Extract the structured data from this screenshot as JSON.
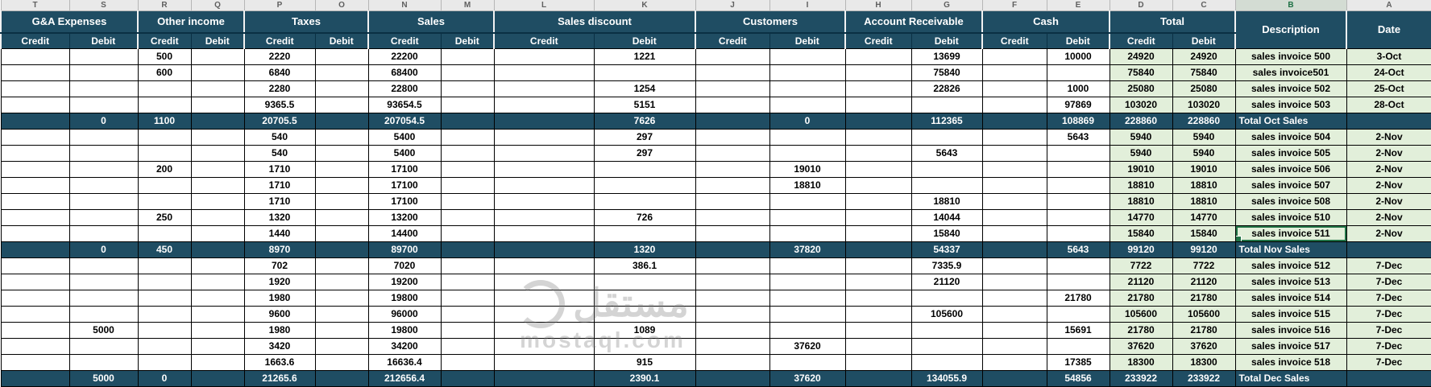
{
  "app": "spreadsheet-sales-journal",
  "colors": {
    "header_bg": "#1F4D63",
    "total_row_bg": "#1F4D63",
    "accent_green": "#E2EFDA",
    "selection_green": "#217346",
    "grid_border": "#000000"
  },
  "watermark": {
    "arabic": "مستقل",
    "domain": "mostaql.com"
  },
  "sheet": {
    "column_letters": [
      "T",
      "S",
      "R",
      "Q",
      "P",
      "O",
      "N",
      "M",
      "L",
      "K",
      "J",
      "I",
      "H",
      "G",
      "F",
      "E",
      "D",
      "C",
      "B",
      "A"
    ],
    "selected_column_letter": "B",
    "credit_label": "Credit",
    "debit_label": "Debit",
    "groups": [
      {
        "label": "G&A Expenses",
        "type": "pair"
      },
      {
        "label": "Other income",
        "type": "pair"
      },
      {
        "label": "Taxes",
        "type": "pair"
      },
      {
        "label": "Sales",
        "type": "pair"
      },
      {
        "label": "Sales discount",
        "type": "pair"
      },
      {
        "label": "Customers",
        "type": "pair"
      },
      {
        "label": "Account Receivable",
        "type": "pair"
      },
      {
        "label": "Cash",
        "type": "pair"
      },
      {
        "label": "Total",
        "type": "pair"
      },
      {
        "label": "Description",
        "type": "single"
      },
      {
        "label": "Date",
        "type": "single"
      }
    ],
    "rows": [
      {
        "type": "data",
        "cells": {
          "oi_credit": "500",
          "tax_credit": "2220",
          "sales_credit": "22200",
          "sd_debit": "1221",
          "ar_debit": "13699",
          "cash_debit": "10000",
          "total_credit": "24920",
          "total_debit": "24920"
        },
        "description": "sales invoice 500",
        "date": "3-Oct"
      },
      {
        "type": "data",
        "cells": {
          "oi_credit": "600",
          "tax_credit": "6840",
          "sales_credit": "68400",
          "ar_debit": "75840",
          "total_credit": "75840",
          "total_debit": "75840"
        },
        "description": "sales invoice501",
        "date": "24-Oct"
      },
      {
        "type": "data",
        "cells": {
          "tax_credit": "2280",
          "sales_credit": "22800",
          "sd_debit": "1254",
          "ar_debit": "22826",
          "cash_debit": "1000",
          "total_credit": "25080",
          "total_debit": "25080"
        },
        "description": "sales invoice 502",
        "date": "25-Oct"
      },
      {
        "type": "data",
        "cells": {
          "tax_credit": "9365.5",
          "sales_credit": "93654.5",
          "sd_debit": "5151",
          "cash_debit": "97869",
          "total_credit": "103020",
          "total_debit": "103020"
        },
        "description": "sales invoice 503",
        "date": "28-Oct"
      },
      {
        "type": "total",
        "cells": {
          "ga_debit": "0",
          "oi_credit": "1100",
          "tax_credit": "20705.5",
          "sales_credit": "207054.5",
          "sd_debit": "7626",
          "cu_debit": "0",
          "ar_debit": "112365",
          "cash_debit": "108869",
          "total_credit": "228860",
          "total_debit": "228860"
        },
        "description": "Total Oct Sales",
        "date": ""
      },
      {
        "type": "data",
        "cells": {
          "tax_credit": "540",
          "sales_credit": "5400",
          "sd_debit": "297",
          "cash_debit": "5643",
          "total_credit": "5940",
          "total_debit": "5940"
        },
        "description": "sales invoice 504",
        "date": "2-Nov"
      },
      {
        "type": "data",
        "cells": {
          "tax_credit": "540",
          "sales_credit": "5400",
          "sd_debit": "297",
          "ar_debit": "5643",
          "total_credit": "5940",
          "total_debit": "5940"
        },
        "description": "sales invoice 505",
        "date": "2-Nov"
      },
      {
        "type": "data",
        "cells": {
          "oi_credit": "200",
          "tax_credit": "1710",
          "sales_credit": "17100",
          "cu_debit": "19010",
          "total_credit": "19010",
          "total_debit": "19010"
        },
        "description": "sales invoice 506",
        "date": "2-Nov"
      },
      {
        "type": "data",
        "cells": {
          "tax_credit": "1710",
          "sales_credit": "17100",
          "cu_debit": "18810",
          "total_credit": "18810",
          "total_debit": "18810"
        },
        "description": "sales invoice 507",
        "date": "2-Nov"
      },
      {
        "type": "data",
        "cells": {
          "tax_credit": "1710",
          "sales_credit": "17100",
          "ar_debit": "18810",
          "total_credit": "18810",
          "total_debit": "18810"
        },
        "description": "sales invoice 508",
        "date": "2-Nov"
      },
      {
        "type": "data",
        "cells": {
          "oi_credit": "250",
          "tax_credit": "1320",
          "sales_credit": "13200",
          "sd_debit": "726",
          "ar_debit": "14044",
          "total_credit": "14770",
          "total_debit": "14770"
        },
        "description": "sales invoice 510",
        "date": "2-Nov"
      },
      {
        "type": "data",
        "selected": true,
        "cells": {
          "tax_credit": "1440",
          "sales_credit": "14400",
          "ar_debit": "15840",
          "total_credit": "15840",
          "total_debit": "15840"
        },
        "description": "sales invoice 511",
        "date": "2-Nov"
      },
      {
        "type": "total",
        "cells": {
          "ga_debit": "0",
          "oi_credit": "450",
          "tax_credit": "8970",
          "sales_credit": "89700",
          "sd_debit": "1320",
          "cu_debit": "37820",
          "ar_debit": "54337",
          "cash_debit": "5643",
          "total_credit": "99120",
          "total_debit": "99120"
        },
        "description": "Total Nov Sales",
        "date": ""
      },
      {
        "type": "data",
        "cells": {
          "tax_credit": "702",
          "sales_credit": "7020",
          "sd_debit": "386.1",
          "ar_debit": "7335.9",
          "total_credit": "7722",
          "total_debit": "7722"
        },
        "description": "sales invoice 512",
        "date": "7-Dec"
      },
      {
        "type": "data",
        "cells": {
          "tax_credit": "1920",
          "sales_credit": "19200",
          "ar_debit": "21120",
          "total_credit": "21120",
          "total_debit": "21120"
        },
        "description": "sales invoice 513",
        "date": "7-Dec"
      },
      {
        "type": "data",
        "cells": {
          "tax_credit": "1980",
          "sales_credit": "19800",
          "cash_debit": "21780",
          "total_credit": "21780",
          "total_debit": "21780"
        },
        "description": "sales invoice 514",
        "date": "7-Dec"
      },
      {
        "type": "data",
        "cells": {
          "tax_credit": "9600",
          "sales_credit": "96000",
          "ar_debit": "105600",
          "total_credit": "105600",
          "total_debit": "105600"
        },
        "description": "sales invoice 515",
        "date": "7-Dec"
      },
      {
        "type": "data",
        "cells": {
          "ga_debit": "5000",
          "tax_credit": "1980",
          "sales_credit": "19800",
          "sd_debit": "1089",
          "cash_debit": "15691",
          "total_credit": "21780",
          "total_debit": "21780"
        },
        "description": "sales invoice 516",
        "date": "7-Dec"
      },
      {
        "type": "data",
        "cells": {
          "tax_credit": "3420",
          "sales_credit": "34200",
          "cu_debit": "37620",
          "total_credit": "37620",
          "total_debit": "37620"
        },
        "description": "sales invoice 517",
        "date": "7-Dec"
      },
      {
        "type": "data",
        "cells": {
          "tax_credit": "1663.6",
          "sales_credit": "16636.4",
          "sd_debit": "915",
          "cash_debit": "17385",
          "total_credit": "18300",
          "total_debit": "18300"
        },
        "description": "sales invoice 518",
        "date": "7-Dec"
      },
      {
        "type": "total",
        "cells": {
          "ga_debit": "5000",
          "oi_credit": "0",
          "tax_credit": "21265.6",
          "sales_credit": "212656.4",
          "sd_debit": "2390.1",
          "cu_debit": "37620",
          "ar_debit": "134055.9",
          "cash_debit": "54856",
          "total_credit": "233922",
          "total_debit": "233922"
        },
        "description": "Total Dec Sales",
        "date": ""
      }
    ]
  }
}
